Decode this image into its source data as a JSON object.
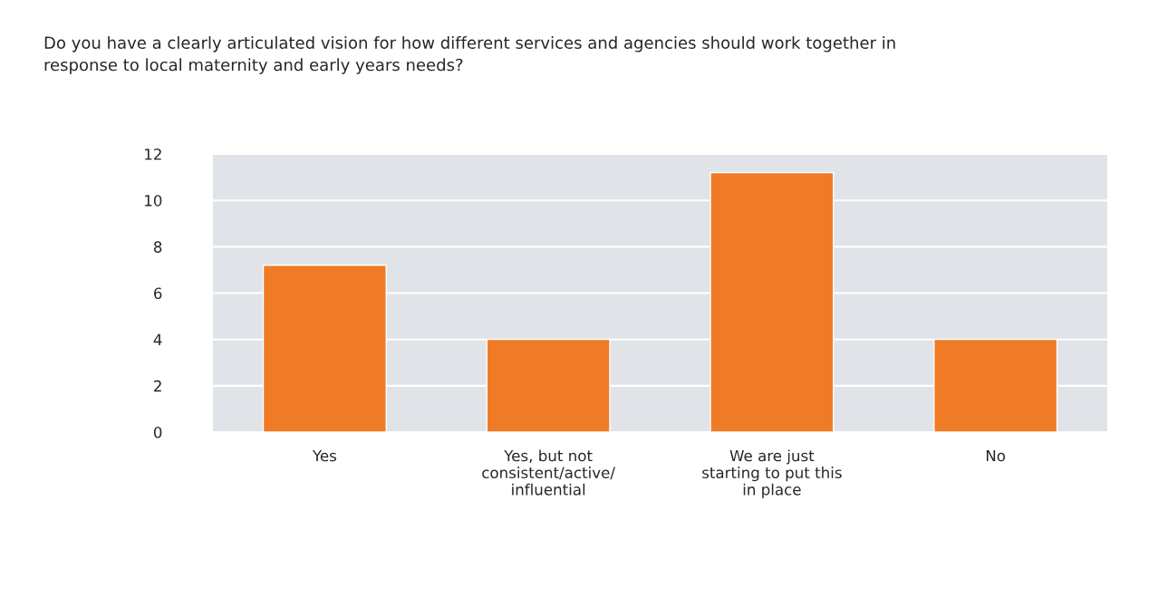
{
  "chart_data": {
    "type": "bar",
    "title": "Do you have a clearly articulated vision for how different services and agencies should work together in\nresponse to local maternity and early years needs?",
    "categories": [
      "Yes",
      "Yes, but not\nconsistent/active/\ninfluential",
      "We are just\nstarting to put this\nin place",
      "No"
    ],
    "values": [
      7.2,
      4,
      11.2,
      4
    ],
    "color": "#f07b26",
    "ylim": [
      0,
      12
    ],
    "yticks": [
      0,
      2,
      4,
      6,
      8,
      10,
      12
    ],
    "grid": "y"
  }
}
